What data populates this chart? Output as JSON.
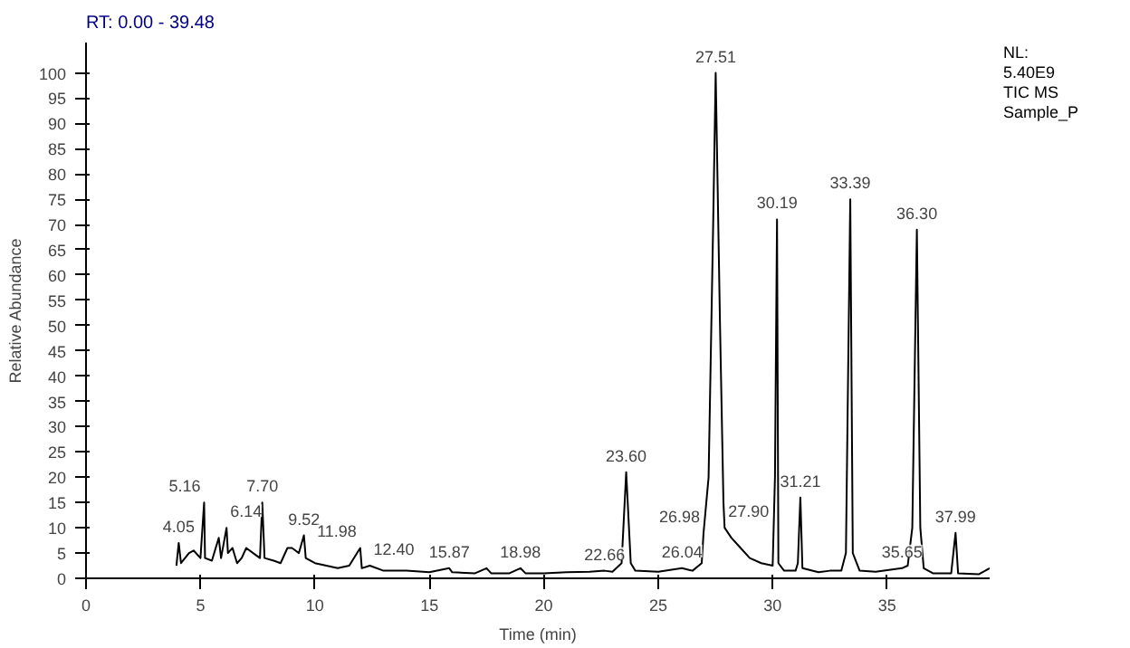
{
  "chart_data": {
    "type": "line",
    "title": "RT: 0.00 - 39.48",
    "xlabel": "Time (min)",
    "ylabel": "Relative Abundance",
    "xlim": [
      0,
      39.48
    ],
    "ylim": [
      0,
      106
    ],
    "xticks": [
      0,
      5,
      10,
      15,
      20,
      25,
      30,
      35
    ],
    "yticks": [
      0,
      5,
      10,
      15,
      20,
      25,
      30,
      35,
      40,
      45,
      50,
      55,
      60,
      65,
      70,
      75,
      80,
      85,
      90,
      95,
      100
    ],
    "grid": false,
    "marker": "none",
    "line_style": "solid",
    "series": [
      {
        "color": "#000000",
        "x": [
          3.95,
          4.05,
          4.15,
          4.5,
          4.7,
          5.0,
          5.16,
          5.2,
          5.5,
          5.8,
          5.9,
          6.14,
          6.2,
          6.4,
          6.6,
          6.8,
          7.0,
          7.3,
          7.6,
          7.7,
          7.8,
          8.2,
          8.5,
          8.8,
          9.0,
          9.3,
          9.52,
          9.6,
          10.0,
          10.5,
          11.0,
          11.5,
          11.98,
          12.05,
          12.4,
          13,
          14,
          15,
          15.87,
          16,
          17,
          17.5,
          17.7,
          18.5,
          18.98,
          19.2,
          20,
          21,
          22,
          22.66,
          23.0,
          23.4,
          23.6,
          23.8,
          24,
          25,
          26.04,
          26.5,
          26.9,
          26.98,
          27.2,
          27.4,
          27.51,
          27.7,
          27.85,
          27.9,
          28.2,
          28.6,
          29,
          29.5,
          30.0,
          30.1,
          30.19,
          30.25,
          30.5,
          31.0,
          31.1,
          31.21,
          31.3,
          32,
          32.5,
          33,
          33.2,
          33.39,
          33.5,
          33.8,
          34.5,
          35.65,
          35.9,
          36.1,
          36.3,
          36.45,
          36.6,
          37,
          37.8,
          37.99,
          38.1,
          39,
          39.48
        ],
        "values": [
          2.5,
          7,
          3,
          5,
          5.5,
          4,
          15,
          4,
          3.5,
          8,
          4,
          10,
          5,
          6,
          3,
          4,
          6,
          5,
          4,
          15,
          4,
          3.5,
          3,
          6,
          6,
          5,
          8.5,
          4,
          3,
          2.5,
          2,
          2.5,
          6,
          2,
          2.5,
          1.5,
          1.5,
          1.2,
          2,
          1.2,
          1,
          2,
          1,
          1,
          2,
          1,
          1,
          1.2,
          1.3,
          1.5,
          1.3,
          3,
          21,
          3,
          1.5,
          1.3,
          2,
          1.5,
          3,
          9,
          20,
          70,
          100,
          50,
          15,
          10,
          8,
          6,
          4,
          3,
          2.5,
          20,
          71,
          3,
          1.5,
          1.5,
          3,
          16,
          2,
          1.2,
          1.5,
          1.5,
          5,
          75,
          5,
          1.5,
          1.3,
          2,
          2.5,
          10,
          69,
          10,
          2,
          1,
          1,
          9,
          1,
          0.8,
          2
        ]
      }
    ],
    "annotations": [
      "NL:",
      "5.40E9",
      "TIC MS",
      "Sample_P",
      {
        "text": "4.05",
        "x": 4.05,
        "y": 7
      },
      {
        "text": "5.16",
        "x": 5.16,
        "y": 15
      },
      {
        "text": "6.14",
        "x": 6.14,
        "y": 10
      },
      {
        "text": "7.70",
        "x": 7.7,
        "y": 15
      },
      {
        "text": "9.52",
        "x": 9.52,
        "y": 8.5
      },
      {
        "text": "11.98",
        "x": 11.98,
        "y": 6
      },
      {
        "text": "12.40",
        "x": 12.4,
        "y": 2.5
      },
      {
        "text": "15.87",
        "x": 15.87,
        "y": 2
      },
      {
        "text": "18.98",
        "x": 18.98,
        "y": 2
      },
      {
        "text": "22.66",
        "x": 22.66,
        "y": 1.5
      },
      {
        "text": "23.60",
        "x": 23.6,
        "y": 21
      },
      {
        "text": "26.04",
        "x": 26.04,
        "y": 2
      },
      {
        "text": "26.98",
        "x": 26.98,
        "y": 9
      },
      {
        "text": "27.51",
        "x": 27.51,
        "y": 100
      },
      {
        "text": "27.90",
        "x": 27.9,
        "y": 10
      },
      {
        "text": "30.19",
        "x": 30.19,
        "y": 71
      },
      {
        "text": "31.21",
        "x": 31.21,
        "y": 16
      },
      {
        "text": "33.39",
        "x": 33.39,
        "y": 75
      },
      {
        "text": "35.65",
        "x": 35.65,
        "y": 2
      },
      {
        "text": "36.30",
        "x": 36.3,
        "y": 69
      },
      {
        "text": "37.99",
        "x": 37.99,
        "y": 9
      }
    ]
  }
}
